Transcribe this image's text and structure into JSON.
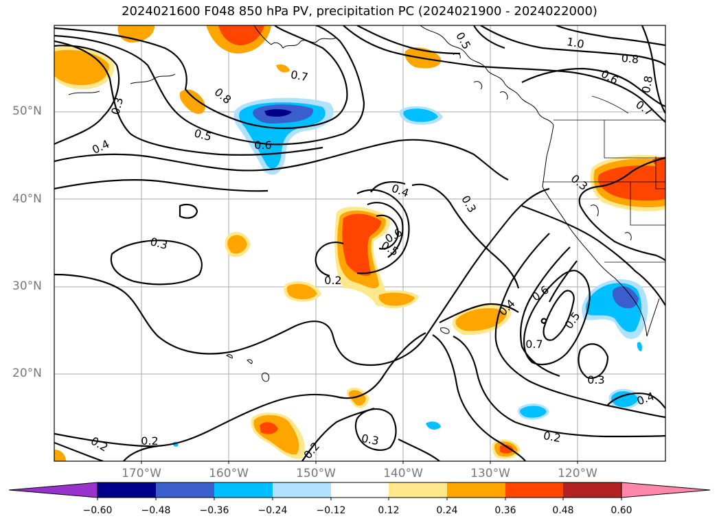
{
  "title": "2024021600 F048 850 hPa PV, precipitation PC (2024021900 - 2024022000)",
  "lat_labels": [
    "50°N",
    "40°N",
    "30°N",
    "20°N"
  ],
  "lon_labels": [
    "170°W",
    "160°W",
    "150°W",
    "140°W",
    "130°W",
    "120°W"
  ],
  "colorbar": {
    "ticks": [
      "−0.60",
      "−0.48",
      "−0.36",
      "−0.24",
      "−0.12",
      "0.12",
      "0.24",
      "0.36",
      "0.48",
      "0.60"
    ],
    "colors": [
      "#9932cc",
      "#00008b",
      "#3a5fcd",
      "#00bfff",
      "#b0e2ff",
      "#ffffff",
      "#ffe88c",
      "#ffa500",
      "#ff4500",
      "#b22222",
      "#ff88aa"
    ]
  },
  "contour_labels": [
    "0.3",
    "0.4",
    "0.5",
    "0.6",
    "0.8",
    "0.7",
    "1.0",
    "0.8",
    "0.6",
    "0.7",
    "0.8",
    "0.5",
    "0.3",
    "0.4",
    "0.6",
    "0.5",
    "0.3",
    "0.3",
    "0.2",
    "0.4",
    "0.6",
    "0.5",
    "0.7",
    "0.3",
    "0.4",
    "0.2",
    "0.3",
    "0.2",
    "0.2",
    "0.2"
  ]
}
